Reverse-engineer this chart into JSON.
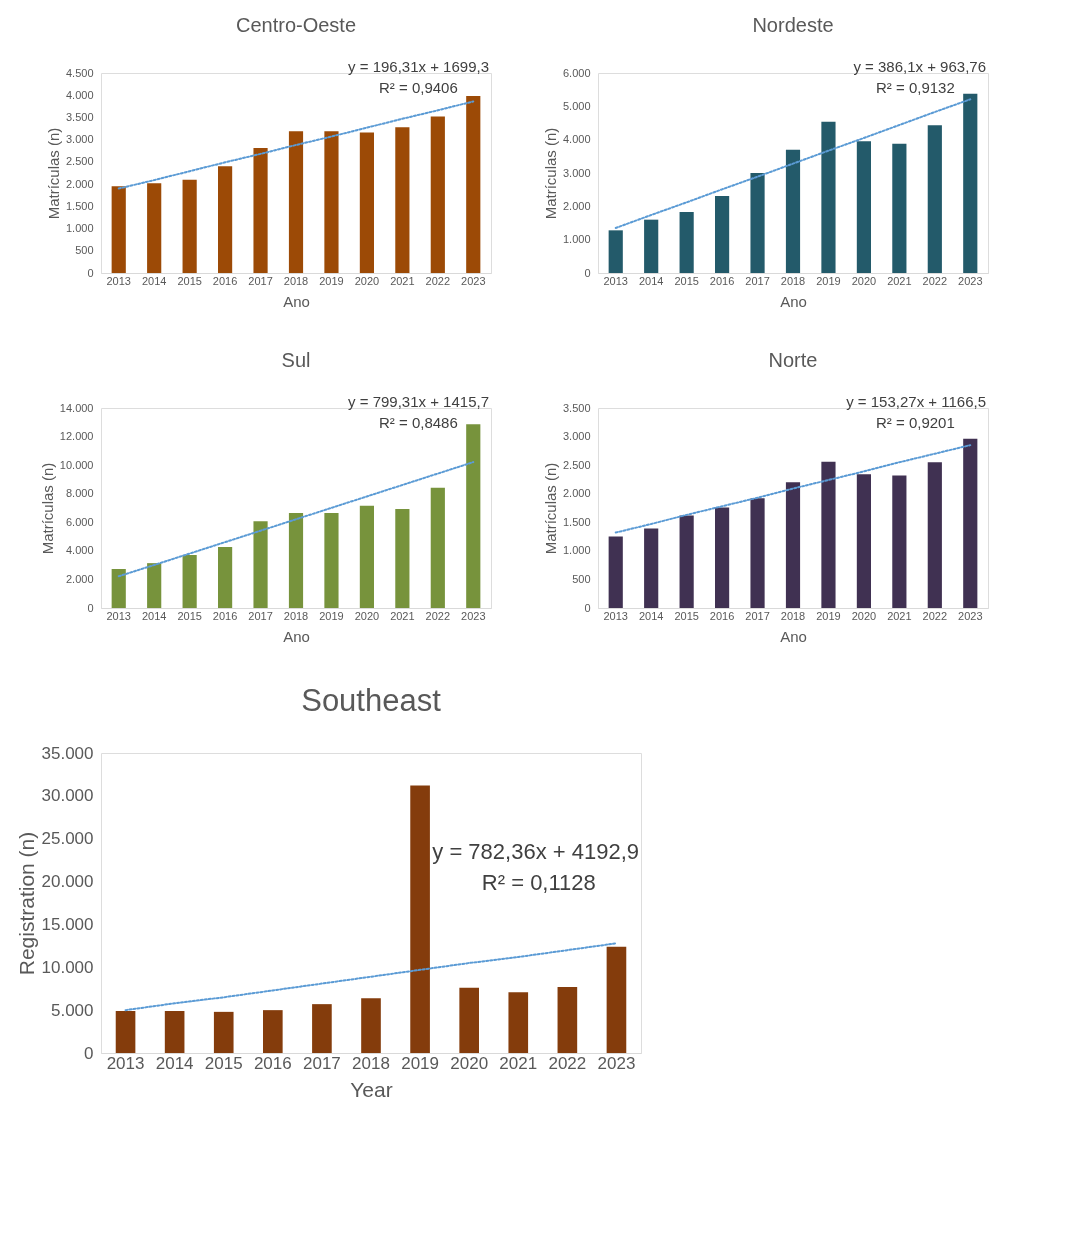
{
  "chart_data": [
    {
      "type": "bar",
      "title": "Centro-Oeste",
      "xlabel": "Ano",
      "ylabel": "Matrículas (n)",
      "grid": false,
      "categories": [
        "2013",
        "2014",
        "2015",
        "2016",
        "2017",
        "2018",
        "2019",
        "2020",
        "2021",
        "2022",
        "2023"
      ],
      "ylim": [
        0,
        4500
      ],
      "yticks": [
        0,
        500,
        {
          "value": 1000,
          "label": "1.000"
        },
        {
          "value": 1500,
          "label": "1.500"
        },
        {
          "value": 2000,
          "label": "2.000"
        },
        {
          "value": 2500,
          "label": "2.500"
        },
        {
          "value": 3000,
          "label": "3.000"
        },
        {
          "value": 3500,
          "label": "3.500"
        },
        {
          "value": 4000,
          "label": "4.000"
        },
        {
          "value": 4500,
          "label": "4.500"
        }
      ],
      "annotations": [
        "y = 196,31x + 1699,3",
        "R² = 0,9406"
      ],
      "series": [
        {
          "color": "#9c4a06",
          "values": [
            1950,
            2020,
            2100,
            2400,
            2810,
            3190,
            3190,
            3160,
            3280,
            3520,
            3980
          ]
        },
        {
          "type": "line",
          "color": "#5b9bd5",
          "line_style": "dotted",
          "marker": "none",
          "values": [
            1900,
            2090,
            2290,
            2490,
            2680,
            2880,
            3070,
            3270,
            3470,
            3660,
            3860
          ]
        }
      ]
    },
    {
      "type": "bar",
      "title": "Nordeste",
      "xlabel": "Ano",
      "ylabel": "Matrículas (n)",
      "grid": false,
      "categories": [
        "2013",
        "2014",
        "2015",
        "2016",
        "2017",
        "2018",
        "2019",
        "2020",
        "2021",
        "2022",
        "2023"
      ],
      "ylim": [
        0,
        6000
      ],
      "yticks": [
        0,
        {
          "value": 1000,
          "label": "1.000"
        },
        {
          "value": 2000,
          "label": "2.000"
        },
        {
          "value": 3000,
          "label": "3.000"
        },
        {
          "value": 4000,
          "label": "4.000"
        },
        {
          "value": 5000,
          "label": "5.000"
        },
        {
          "value": 6000,
          "label": "6.000"
        }
      ],
      "annotations": [
        "y = 386,1x + 963,76",
        "R² = 0,9132"
      ],
      "series": [
        {
          "color": "#235a6a",
          "values": [
            1280,
            1600,
            1830,
            2310,
            3000,
            3700,
            4540,
            3950,
            3880,
            4430,
            5380
          ]
        },
        {
          "type": "line",
          "color": "#5b9bd5",
          "line_style": "dotted",
          "marker": "none",
          "values": [
            1350,
            1740,
            2120,
            2510,
            2890,
            3280,
            3670,
            4050,
            4440,
            4830,
            5210
          ]
        }
      ]
    },
    {
      "type": "bar",
      "title": "Sul",
      "xlabel": "Ano",
      "ylabel": "Matrículas (n)",
      "grid": false,
      "categories": [
        "2013",
        "2014",
        "2015",
        "2016",
        "2017",
        "2018",
        "2019",
        "2020",
        "2021",
        "2022",
        "2023"
      ],
      "ylim": [
        0,
        14000
      ],
      "yticks": [
        0,
        {
          "value": 2000,
          "label": "2.000"
        },
        {
          "value": 4000,
          "label": "4.000"
        },
        {
          "value": 6000,
          "label": "6.000"
        },
        {
          "value": 8000,
          "label": "8.000"
        },
        {
          "value": 10000,
          "label": "10.000"
        },
        {
          "value": 12000,
          "label": "12.000"
        },
        {
          "value": 14000,
          "label": "14.000"
        }
      ],
      "annotations": [
        "y = 799,31x + 1415,7",
        "R² = 0,8486"
      ],
      "series": [
        {
          "color": "#77933c",
          "values": [
            2730,
            3140,
            3710,
            4270,
            6080,
            6650,
            6650,
            7150,
            6930,
            8420,
            12870
          ]
        },
        {
          "type": "line",
          "color": "#5b9bd5",
          "line_style": "dotted",
          "marker": "none",
          "values": [
            2220,
            3010,
            3810,
            4610,
            5410,
            6210,
            7010,
            7810,
            8610,
            9410,
            10210
          ]
        }
      ]
    },
    {
      "type": "bar",
      "title": "Norte",
      "xlabel": "Ano",
      "ylabel": "Matrículas (n)",
      "grid": false,
      "categories": [
        "2013",
        "2014",
        "2015",
        "2016",
        "2017",
        "2018",
        "2019",
        "2020",
        "2021",
        "2022",
        "2023"
      ],
      "ylim": [
        0,
        3500
      ],
      "yticks": [
        0,
        500,
        {
          "value": 1000,
          "label": "1.000"
        },
        {
          "value": 1500,
          "label": "1.500"
        },
        {
          "value": 2000,
          "label": "2.000"
        },
        {
          "value": 2500,
          "label": "2.500"
        },
        {
          "value": 3000,
          "label": "3.000"
        },
        {
          "value": 3500,
          "label": "3.500"
        }
      ],
      "annotations": [
        "y = 153,27x + 1166,5",
        "R² = 0,9201"
      ],
      "series": [
        {
          "color": "#403152",
          "values": [
            1250,
            1390,
            1620,
            1760,
            1920,
            2200,
            2560,
            2340,
            2320,
            2550,
            2960
          ]
        },
        {
          "type": "line",
          "color": "#5b9bd5",
          "line_style": "dotted",
          "marker": "none",
          "values": [
            1320,
            1470,
            1630,
            1780,
            1930,
            2090,
            2240,
            2390,
            2550,
            2700,
            2850
          ]
        }
      ]
    },
    {
      "type": "bar",
      "title": "Southeast",
      "xlabel": "Year",
      "ylabel": "Registration (n)",
      "grid": false,
      "categories": [
        "2013",
        "2014",
        "2015",
        "2016",
        "2017",
        "2018",
        "2019",
        "2020",
        "2021",
        "2022",
        "2023"
      ],
      "ylim": [
        0,
        35000
      ],
      "yticks": [
        0,
        {
          "value": 5000,
          "label": "5.000"
        },
        {
          "value": 10000,
          "label": "10.000"
        },
        {
          "value": 15000,
          "label": "15.000"
        },
        {
          "value": 20000,
          "label": "20.000"
        },
        {
          "value": 25000,
          "label": "25.000"
        },
        {
          "value": 30000,
          "label": "30.000"
        },
        {
          "value": 35000,
          "label": "35.000"
        }
      ],
      "annotations": [
        "y = 782,36x + 4192,9",
        "R² = 0,1128"
      ],
      "series": [
        {
          "color": "#843c0c",
          "values": [
            4900,
            4900,
            4800,
            5000,
            5700,
            6400,
            31200,
            7600,
            7100,
            7700,
            12400
          ]
        },
        {
          "type": "line",
          "color": "#5b9bd5",
          "line_style": "dotted",
          "marker": "none",
          "values": [
            5000,
            5800,
            6500,
            7300,
            8100,
            8900,
            9700,
            10500,
            11200,
            12000,
            12800
          ]
        }
      ]
    }
  ]
}
